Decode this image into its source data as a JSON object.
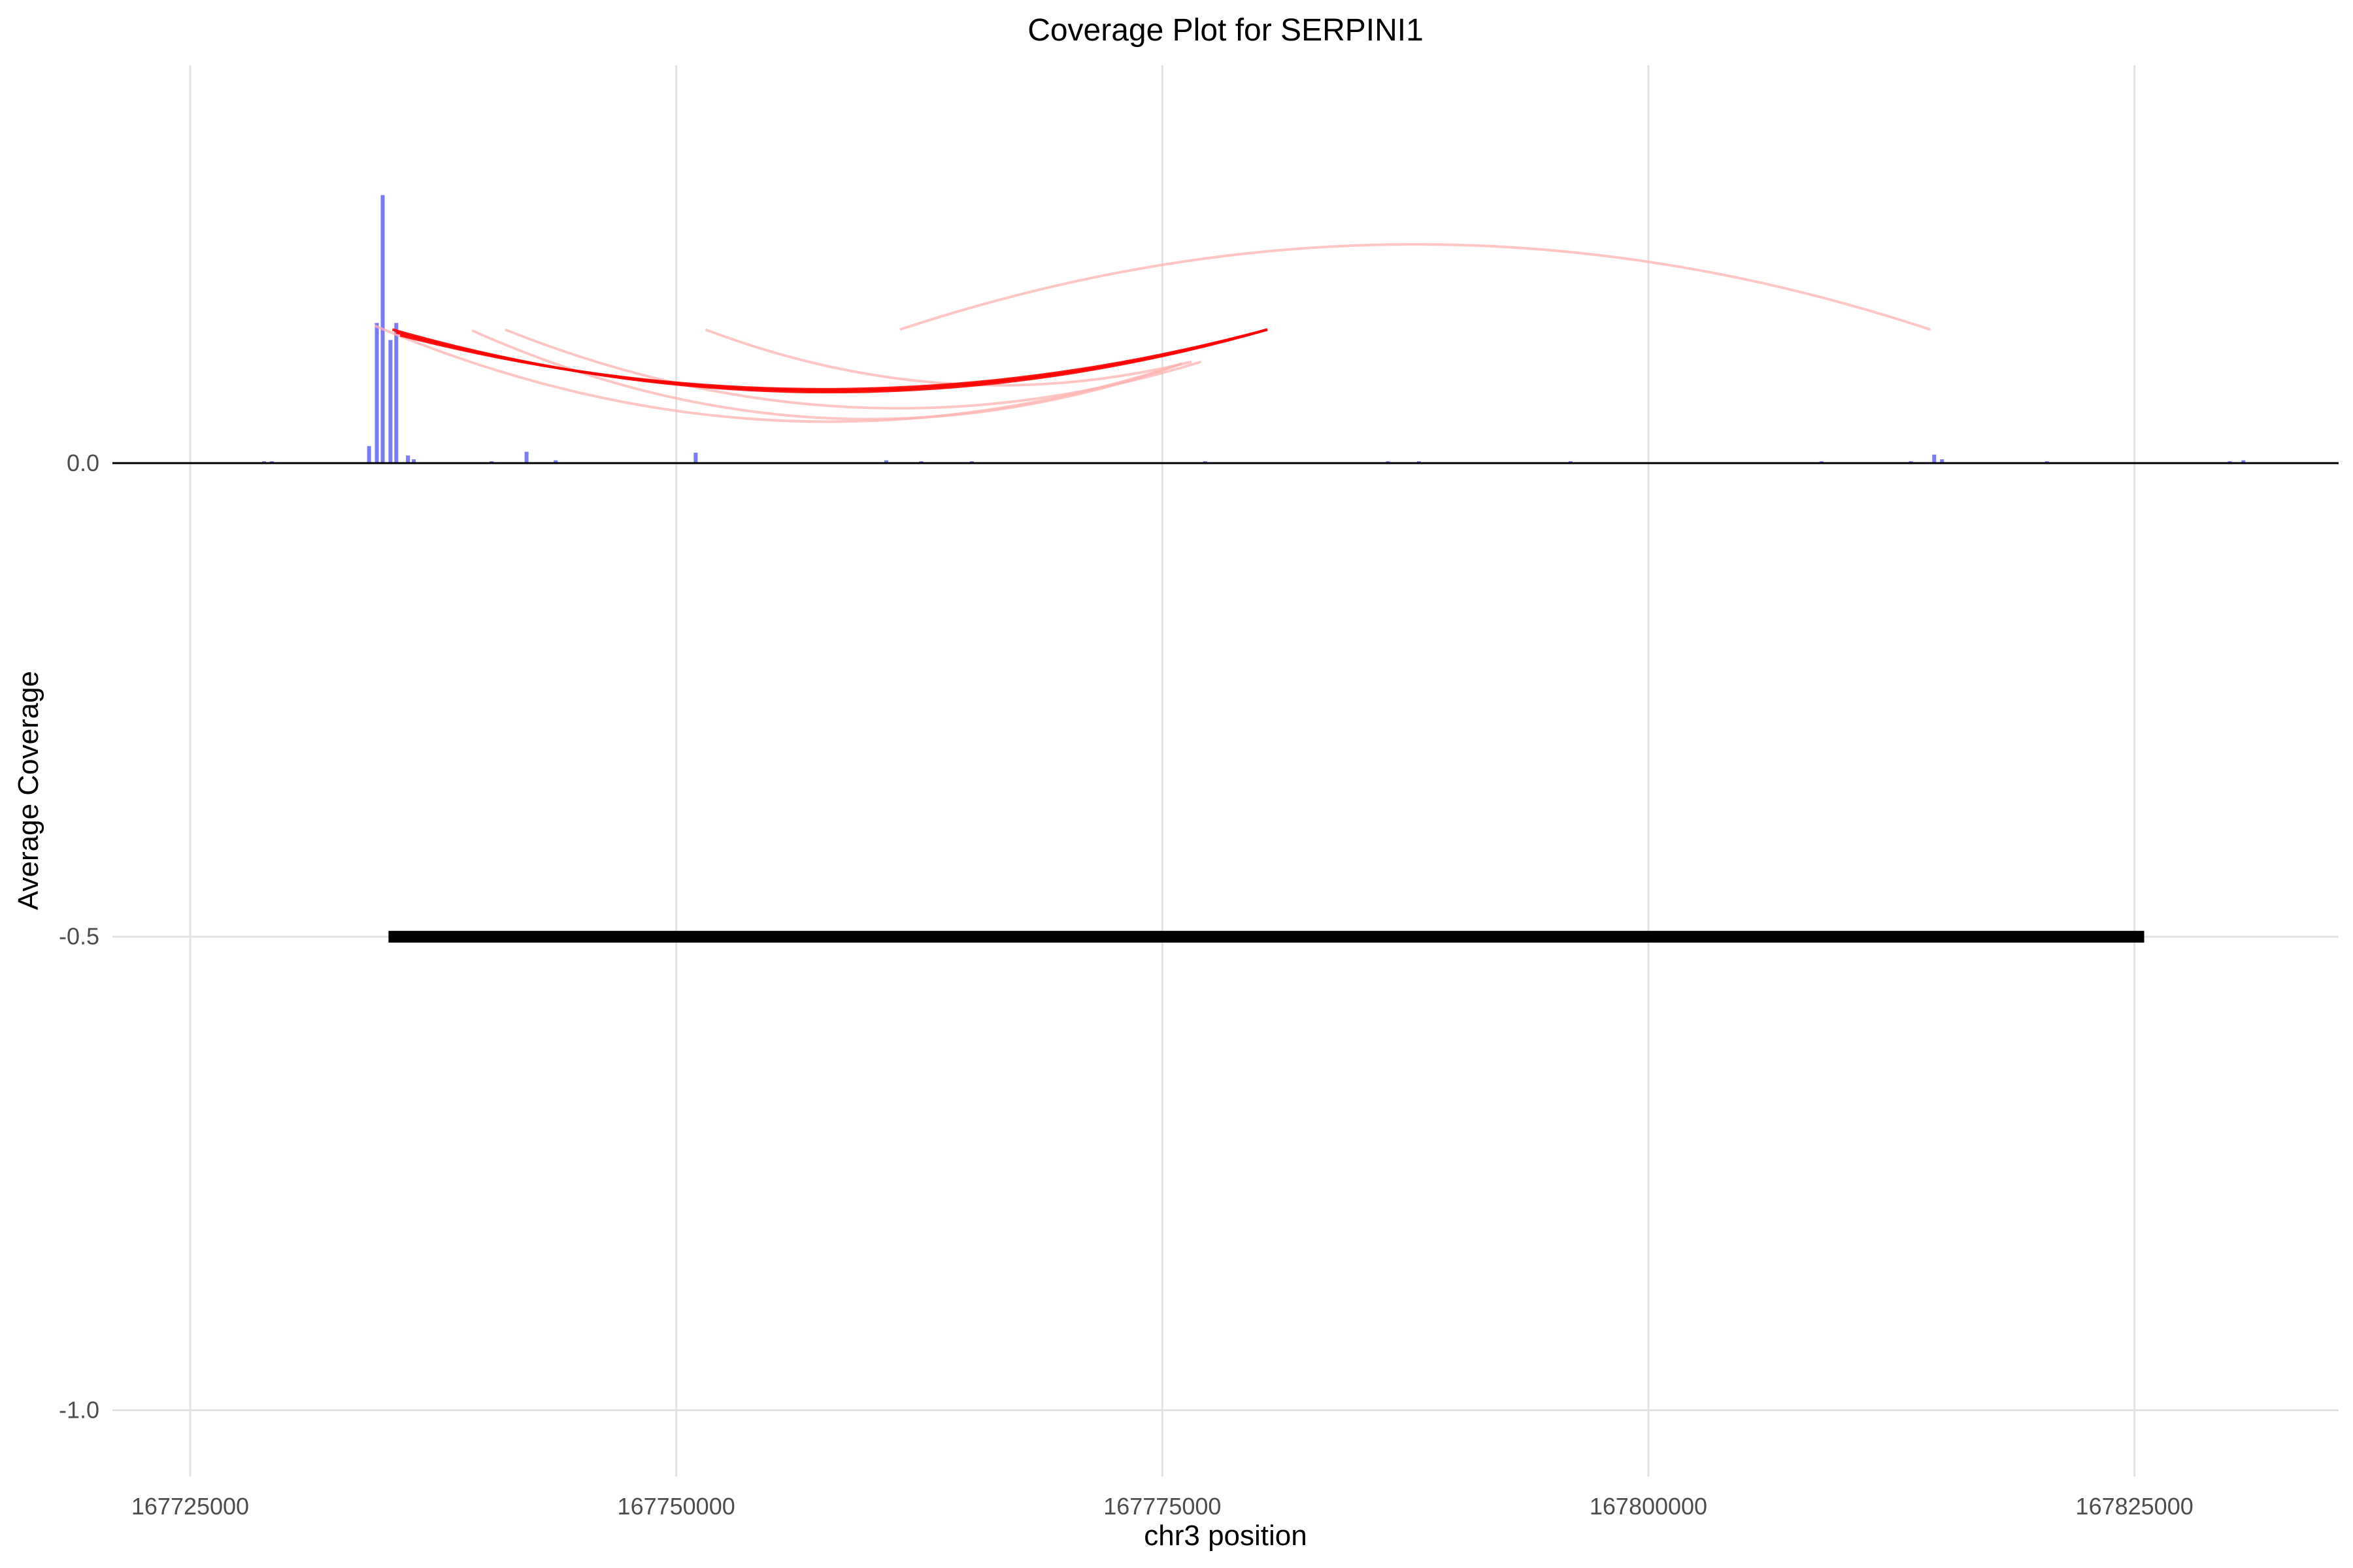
{
  "chart_data": {
    "type": "bar",
    "title": "Coverage Plot for SERPINI1",
    "xlabel": "chr3 position",
    "ylabel": "Average Coverage",
    "xlim": [
      167721000,
      167835500
    ],
    "ylim": [
      -1.07,
      0.42
    ],
    "xticks": [
      167725000,
      167750000,
      167775000,
      167800000,
      167825000
    ],
    "xtick_labels": [
      "167725000",
      "167750000",
      "167775000",
      "167800000",
      "167825000"
    ],
    "yticks": [
      -1.0,
      -0.5,
      0.0
    ],
    "ytick_labels": [
      "-1.0",
      "-0.5",
      "0.0"
    ],
    "grid": true,
    "legend": "none",
    "colors": {
      "coverage": "#7b7bf2",
      "arc_main": "#ff0000",
      "arc_faint": "#ffb3b3",
      "gene": "#000000",
      "baseline": "#000000",
      "grid": "#e3e3e3"
    },
    "coverage": {
      "x": [
        167728800,
        167729200,
        167734200,
        167734600,
        167734900,
        167735300,
        167735600,
        167736200,
        167736500,
        167740500,
        167742300,
        167743800,
        167751000,
        167760800,
        167762600,
        167765200,
        167775400,
        167777200,
        167786600,
        167788200,
        167796000,
        167808900,
        167813500,
        167814700,
        167815100,
        167820500,
        167829900,
        167830600
      ],
      "values": [
        0.002,
        0.002,
        0.018,
        0.148,
        0.283,
        0.13,
        0.148,
        0.008,
        0.004,
        0.002,
        0.012,
        0.003,
        0.011,
        0.003,
        0.002,
        0.002,
        0.001,
        0.002,
        0.002,
        0.002,
        0.002,
        0.002,
        0.002,
        0.009,
        0.004,
        0.002,
        0.002,
        0.003
      ]
    },
    "gene": {
      "start": 167735200,
      "end": 167825500,
      "y": -0.5
    },
    "arcs_main": [
      {
        "x0": 167735400,
        "x1": 167780400,
        "y0": 0.141,
        "y1": 0.141,
        "depth": 0.066
      },
      {
        "x0": 167735600,
        "x1": 167780400,
        "y0": 0.138,
        "y1": 0.141,
        "depth": 0.063
      },
      {
        "x0": 167735800,
        "x1": 167780400,
        "y0": 0.135,
        "y1": 0.141,
        "depth": 0.06
      }
    ],
    "arcs_faint": [
      {
        "x0": 167734500,
        "x1": 167776000,
        "y0": 0.145,
        "y1": 0.105,
        "depth": 0.08
      },
      {
        "x0": 167739500,
        "x1": 167776000,
        "y0": 0.14,
        "y1": 0.105,
        "depth": 0.075
      },
      {
        "x0": 167741200,
        "x1": 167777000,
        "y0": 0.141,
        "y1": 0.107,
        "depth": 0.065
      },
      {
        "x0": 167751500,
        "x1": 167776500,
        "y0": 0.141,
        "y1": 0.107,
        "depth": 0.04
      },
      {
        "x0": 167761500,
        "x1": 167814500,
        "y0": 0.141,
        "y1": 0.141,
        "depth": -0.09
      }
    ]
  }
}
